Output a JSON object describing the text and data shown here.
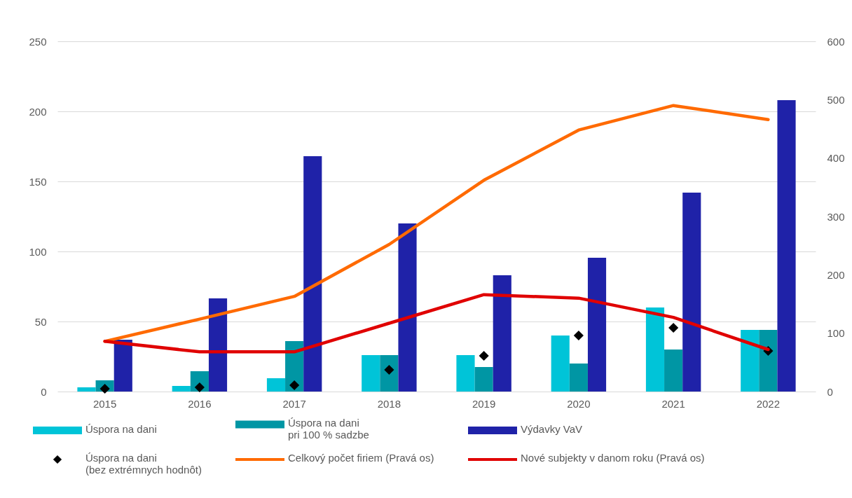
{
  "chart_data": {
    "type": "bar",
    "categories": [
      "2015",
      "2016",
      "2017",
      "2018",
      "2019",
      "2020",
      "2021",
      "2022"
    ],
    "series": [
      {
        "name": "Úspora na dani",
        "color": "#00c4d8",
        "values": [
          3,
          4,
          9.5,
          26,
          26,
          40,
          60,
          44
        ]
      },
      {
        "name": "Úspora na dani\npri 100 % sadzbe",
        "color": "#0096a4",
        "values": [
          8,
          14.5,
          36,
          26,
          17.5,
          20,
          30,
          44
        ]
      },
      {
        "name": "Výdavky VaV",
        "color": "#1f22a8",
        "values": [
          37,
          66.5,
          168,
          120,
          83,
          95.5,
          142,
          208
        ]
      },
      {
        "name": "Úspora na dani\n(bez extrémnych hodnôt)",
        "type": "scatter",
        "marker": "diamond",
        "color": "#000000",
        "values": [
          2,
          3,
          4.5,
          15.5,
          25.5,
          40,
          45.5,
          29
        ]
      },
      {
        "name": "Celkový počet firiem (Pravá os)",
        "type": "line",
        "axis": "y2",
        "color": "#ff6a00",
        "values": [
          86,
          124,
          163,
          252,
          362,
          448,
          490,
          466
        ]
      },
      {
        "name": "Nové subjekty v danom roku (Pravá os)",
        "type": "line",
        "axis": "y2",
        "color": "#e00000",
        "values": [
          86,
          68,
          68,
          117,
          166,
          160,
          127,
          72
        ]
      }
    ],
    "ylim": [
      0,
      250
    ],
    "yticks": [
      0,
      50,
      100,
      150,
      200,
      250
    ],
    "y2lim": [
      0,
      600
    ],
    "y2ticks": [
      0,
      100,
      200,
      300,
      400,
      500,
      600
    ],
    "grid": "y",
    "legend": "bottom"
  }
}
